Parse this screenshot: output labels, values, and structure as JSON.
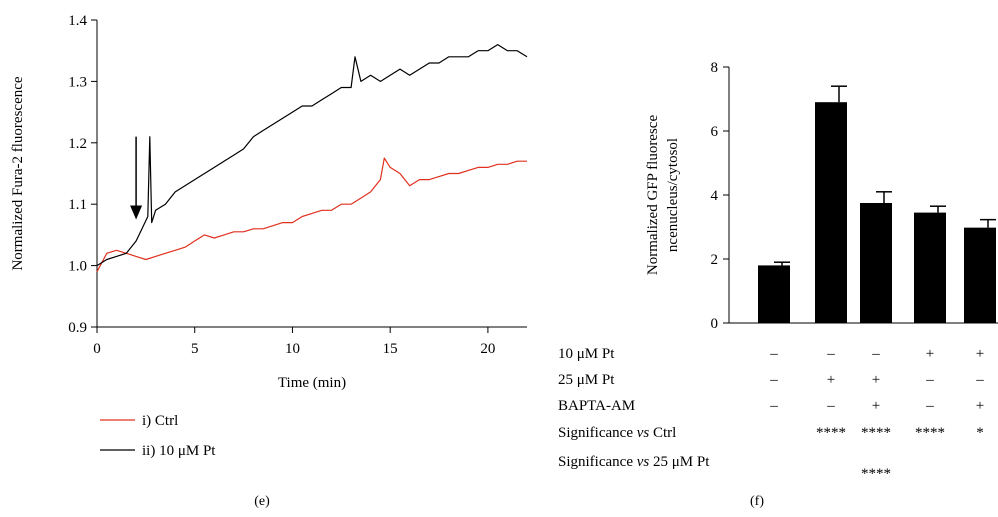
{
  "chart_data": [
    {
      "type": "line",
      "panel_label": "(e)",
      "xlabel": "Time (min)",
      "ylabel": "Normalized Fura-2 fluorescence",
      "xlim": [
        0,
        22
      ],
      "ylim": [
        0.9,
        1.4
      ],
      "x_ticks": [
        0,
        5,
        10,
        15,
        20
      ],
      "x_tick_labels": [
        "0",
        "5",
        "10",
        "15",
        "20"
      ],
      "y_ticks": [
        0.9,
        1.0,
        1.1,
        1.2,
        1.3,
        1.4
      ],
      "y_tick_labels": [
        "0.9",
        "1.0",
        "1.1",
        "1.2",
        "1.3",
        "1.4"
      ],
      "annotation": {
        "type": "arrow",
        "x": 2.0,
        "y_from": 1.21,
        "y_to": 1.075
      },
      "legend_position": "bottom-left",
      "series": [
        {
          "name": "i) Ctrl",
          "color": "#e0301e",
          "x": [
            0,
            0.5,
            1,
            1.5,
            2,
            2.5,
            3,
            3.5,
            4,
            4.5,
            5,
            5.5,
            6,
            6.5,
            7,
            7.5,
            8,
            8.5,
            9,
            9.5,
            10,
            10.5,
            11,
            11.5,
            12,
            12.5,
            13,
            13.5,
            14,
            14.5,
            14.7,
            15,
            15.5,
            16,
            16.5,
            17,
            17.5,
            18,
            18.5,
            19,
            19.5,
            20,
            20.5,
            21,
            21.5,
            22
          ],
          "y": [
            0.99,
            1.02,
            1.025,
            1.02,
            1.015,
            1.01,
            1.015,
            1.02,
            1.025,
            1.03,
            1.04,
            1.05,
            1.045,
            1.05,
            1.055,
            1.055,
            1.06,
            1.06,
            1.065,
            1.07,
            1.07,
            1.08,
            1.085,
            1.09,
            1.09,
            1.1,
            1.1,
            1.11,
            1.12,
            1.14,
            1.175,
            1.16,
            1.15,
            1.13,
            1.14,
            1.14,
            1.145,
            1.15,
            1.15,
            1.155,
            1.16,
            1.16,
            1.165,
            1.165,
            1.17,
            1.17
          ]
        },
        {
          "name": "ii) 10 μM Pt",
          "color": "#000000",
          "x": [
            0,
            0.5,
            1,
            1.5,
            2,
            2.3,
            2.6,
            2.7,
            2.8,
            3,
            3.5,
            4,
            4.5,
            5,
            5.5,
            6,
            6.5,
            7,
            7.5,
            8,
            8.5,
            9,
            9.5,
            10,
            10.5,
            11,
            11.5,
            12,
            12.5,
            13,
            13.2,
            13.5,
            14,
            14.5,
            15,
            15.5,
            16,
            16.5,
            17,
            17.5,
            18,
            18.5,
            19,
            19.5,
            20,
            20.5,
            21,
            21.5,
            22
          ],
          "y": [
            1.0,
            1.01,
            1.015,
            1.02,
            1.04,
            1.06,
            1.08,
            1.21,
            1.07,
            1.09,
            1.1,
            1.12,
            1.13,
            1.14,
            1.15,
            1.16,
            1.17,
            1.18,
            1.19,
            1.21,
            1.22,
            1.23,
            1.24,
            1.25,
            1.26,
            1.26,
            1.27,
            1.28,
            1.29,
            1.29,
            1.34,
            1.3,
            1.31,
            1.3,
            1.31,
            1.32,
            1.31,
            1.32,
            1.33,
            1.33,
            1.34,
            1.34,
            1.34,
            1.35,
            1.35,
            1.36,
            1.35,
            1.35,
            1.34
          ]
        }
      ]
    },
    {
      "type": "bar",
      "panel_label": "(f)",
      "ylabel_line1": "Normalized GFP fluoresce",
      "ylabel_line2": "ncenucleus/cytosol",
      "ylim": [
        0,
        8
      ],
      "y_ticks": [
        0,
        2,
        4,
        6,
        8
      ],
      "y_tick_labels": [
        "0",
        "2",
        "4",
        "6",
        "8"
      ],
      "bar_color": "#000000",
      "values": [
        1.8,
        6.9,
        3.75,
        3.45,
        2.98
      ],
      "errors": [
        0.1,
        0.5,
        0.35,
        0.2,
        0.25
      ],
      "table": [
        {
          "label": "10 μM Pt",
          "cells": [
            "–",
            "–",
            "–",
            "+",
            "+"
          ]
        },
        {
          "label": "25 μM Pt",
          "cells": [
            "–",
            "+",
            "+",
            "–",
            "–"
          ]
        },
        {
          "label": "BAPTA-AM",
          "cells": [
            "–",
            "–",
            "+",
            "–",
            "+"
          ]
        },
        {
          "label_prefix": "Significance ",
          "label_italic": "vs",
          "label_suffix": " Ctrl",
          "cells": [
            "",
            "****",
            "****",
            "****",
            "*"
          ]
        },
        {
          "label_prefix": "Significance ",
          "label_italic": "vs",
          "label_suffix": " 25 μM Pt",
          "cells": [
            "",
            "",
            "****",
            "",
            ""
          ]
        }
      ]
    }
  ]
}
